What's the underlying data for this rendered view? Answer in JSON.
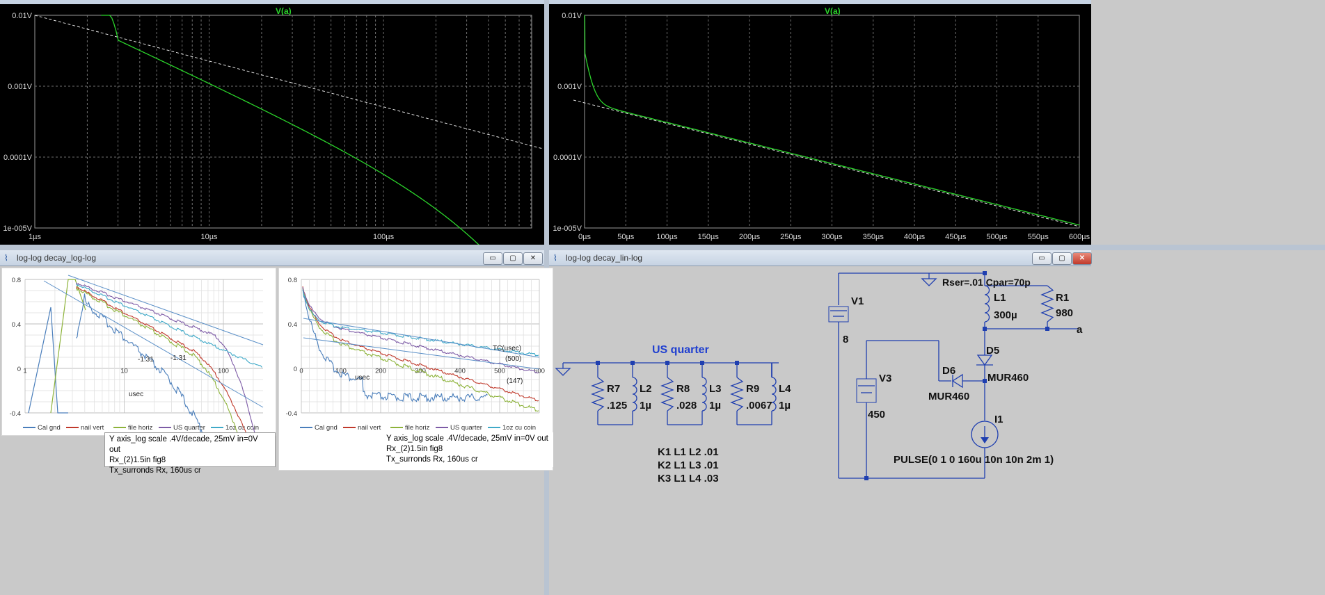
{
  "top_left": {
    "window_title": "log-log decay_log-log",
    "trace_label": "V(a)",
    "y_ticks": [
      "0.01V",
      "0.001V",
      "0.0001V",
      "1e-005V"
    ],
    "x_ticks": [
      "1µs",
      "10µs",
      "100µs"
    ]
  },
  "top_right": {
    "window_title": "log-log decay_lin-log",
    "trace_label": "V(a)",
    "y_ticks": [
      "0.01V",
      "0.001V",
      "0.0001V",
      "1e-005V"
    ],
    "x_ticks": [
      "0µs",
      "50µs",
      "100µs",
      "150µs",
      "200µs",
      "250µs",
      "300µs",
      "350µs",
      "400µs",
      "450µs",
      "500µs",
      "550µs",
      "600µs"
    ]
  },
  "bottom_left_window": {
    "title": "log-log decay_log-log",
    "buttons": {
      "minimize": "▭",
      "maximize": "▢",
      "close": "✕"
    }
  },
  "bottom_right_window": {
    "title": "log-log decay_lin-log",
    "buttons": {
      "minimize": "▭",
      "maximize": "▢",
      "close": "✕"
    }
  },
  "excel_left": {
    "y_ticks": [
      "0.8",
      "0.4",
      "0",
      "-0.4"
    ],
    "x_ticks": [
      "1",
      "10",
      "100"
    ],
    "xlabel": "usec",
    "annotations": [
      "-1.31",
      "-1.31"
    ],
    "legend": [
      "Cal gnd",
      "nail vert",
      "file horiz",
      "US quarter",
      "1oz cu coin"
    ],
    "note_lines": [
      "Y axis_log scale .4V/decade, 25mV in=0V out",
      "Rx_(2)1.5in fig8",
      "Tx_surronds Rx, 160us cr"
    ]
  },
  "excel_right": {
    "y_ticks": [
      "0.8",
      "0.4",
      "0",
      "-0.4"
    ],
    "x_ticks": [
      "0",
      "100",
      "200",
      "300",
      "400",
      "500",
      "600"
    ],
    "xlabel": "usec",
    "annotations": [
      "TC(usec)",
      "(500)",
      "(147)"
    ],
    "legend": [
      "Cal gnd",
      "nail vert",
      "file horiz",
      "US quarter",
      "1oz cu coin"
    ],
    "note_lines": [
      "Y axis_log scale .4V/decade, 25mV in=0V out",
      "Rx_(2)1.5in fig8",
      "Tx_surronds Rx, 160us cr"
    ]
  },
  "schematic": {
    "heading": "US quarter",
    "labels": {
      "V1": "V1",
      "V1_val": "8",
      "V3": "V3",
      "V3_val": "450",
      "L1": "L1",
      "L1_val": "300µ",
      "R1": "R1",
      "R1_val": "980",
      "rser": "Rser=.01 Cpar=70p",
      "D5": "D5",
      "D5_model": "MUR460",
      "D6": "D6",
      "D6_model": "MUR460",
      "I1": "I1",
      "I1_val": "PULSE(0 1 0 160u 10n 10n 2m 1)",
      "net_a": "a",
      "R7": "R7",
      "R7_val": ".125",
      "L2": "L2",
      "L2_val": "1µ",
      "R8": "R8",
      "R8_val": ".028",
      "L3": "L3",
      "L3_val": "1µ",
      "R9": "R9",
      "R9_val": ".0067",
      "L4": "L4",
      "L4_val": "1µ",
      "K1": "K1 L1 L2 .01",
      "K2": "K2 L1 L3 .01",
      "K3": "K3 L1 L4 .03"
    }
  },
  "colors": {
    "trace": "#2bd42b",
    "grid": "#707070",
    "wire": "#1f3fb0",
    "excel_series": [
      "#4a7ebb",
      "#c0392b",
      "#8db33a",
      "#7d5ba6",
      "#3fa9c8"
    ]
  }
}
